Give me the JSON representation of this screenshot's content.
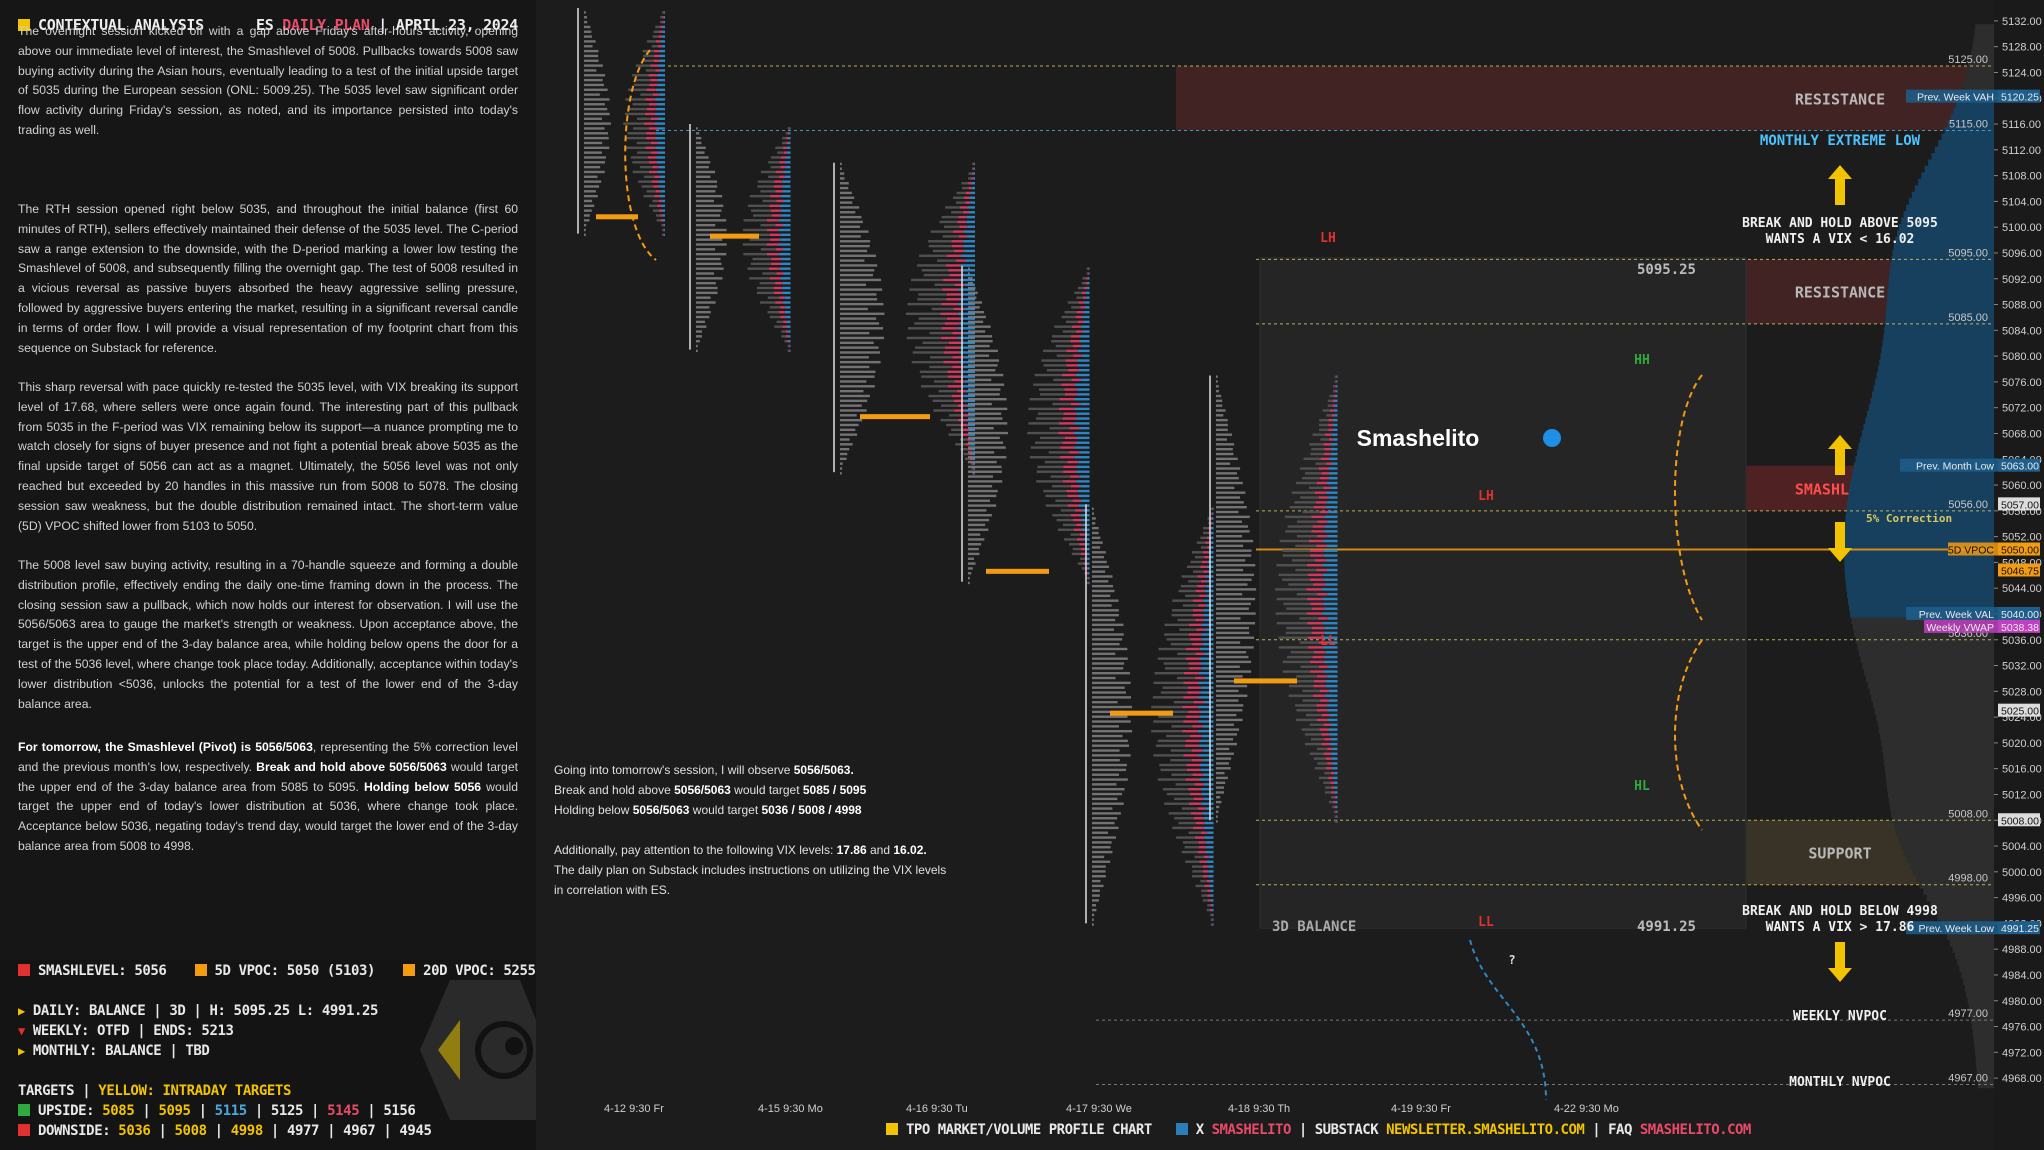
{
  "header": {
    "left": "CONTEXTUAL ANALYSIS",
    "symbol": "ES",
    "plan": "DAILY PLAN",
    "sep": "|",
    "date": "APRIL 23, 2024"
  },
  "paragraphs": [
    "The overnight session kicked off with a gap above Friday's after-hours activity, opening above our immediate level of interest, the Smashlevel of 5008. Pullbacks towards 5008 saw buying activity during the Asian hours, eventually leading to a test of the initial upside target of 5035 during the European session (ONL: 5009.25). The 5035 level saw significant order flow activity during Friday's session, as noted, and its importance persisted into today's trading as well.",
    "The RTH session opened right below 5035, and throughout the initial balance (first 60 minutes of RTH), sellers effectively maintained their defense of the 5035 level. The C-period saw a range extension to the downside, with the D-period marking a lower low testing the Smashlevel of 5008, and subsequently filling the overnight gap. The test of 5008 resulted in a vicious reversal as passive buyers absorbed the heavy aggressive selling pressure, followed by aggressive buyers entering the market, resulting in a significant reversal candle in terms of order flow. I will provide a visual representation of my footprint chart from this sequence on Substack for reference.",
    "This sharp reversal with pace quickly re-tested the 5035 level, with VIX breaking its support level of 17.68, where sellers were once again found. The interesting part of this pullback from 5035 in the F-period was VIX remaining below its support—a nuance prompting me to watch closely for signs of buyer presence and not fight a potential break above 5035 as the final upside target of 5056 can act as a magnet. Ultimately, the 5056 level was not only reached but exceeded by 20 handles in this massive run from 5008 to 5078. The closing session saw weakness, but the double distribution remained intact. The short-term value (5D) VPOC shifted lower from 5103 to 5050.",
    "The 5008 level saw buying activity, resulting in a 70-handle squeeze and forming a double distribution profile, effectively ending the daily one-time framing down in the process. The closing session saw a pullback, which now holds our interest for observation. I will use the 5056/5063 area to gauge the market's strength or weakness. Upon acceptance above, the target is the upper end of the 3-day balance area, while holding below opens the door for a test of the 5036 level, where change took place today. Additionally, acceptance within today's lower distribution <5036, unlocks the potential for a test of the lower end of the 3-day balance area."
  ],
  "tomorrow": {
    "p1": "For tomorrow, the Smashlevel (Pivot) is 5056/5063",
    "t1": ", representing the 5% correction level and the previous month's low, respectively. ",
    "p2": "Break and hold above 5056/5063",
    "t2": " would target the upper end of the 3-day balance area from 5085 to 5095. ",
    "p3": "Holding below 5056",
    "t3": " would target the upper end of today's lower distribution at 5036, where change took place. Acceptance below 5036, negating today's trend day, would target the lower end of the 3-day balance area from 5008 to 4998."
  },
  "levels_row": {
    "smash": "SMASHLEVEL: 5056",
    "vpoc5": "5D VPOC: 5050 (5103)",
    "vpoc20": "20D VPOC: 5255"
  },
  "timeframes": {
    "daily": "DAILY: BALANCE | 3D | H: 5095.25 L: 4991.25",
    "weekly": "WEEKLY: OTFD | ENDS: 5213",
    "monthly": "MONTHLY: BALANCE | TBD"
  },
  "targets": {
    "title": "TARGETS",
    "sep": "|",
    "yellow": "YELLOW: INTRADAY TARGETS",
    "upside": "UPSIDE:",
    "up": [
      "5085",
      "5095",
      "5115",
      "5125",
      "5145",
      "5156"
    ],
    "downside": "DOWNSIDE:",
    "down": [
      "5036",
      "5008",
      "4998",
      "4977",
      "4967",
      "4945"
    ]
  },
  "notes": {
    "l1a": "Going into tomorrow's session, I will observe ",
    "l1b": "5056/5063.",
    "l2a": "Break and hold above ",
    "l2b": "5056/5063",
    "l2c": " would target ",
    "l2d": "5085 / 5095",
    "l3a": "Holding below ",
    "l3b": "5056/5063",
    "l3c": " would target ",
    "l3d": "5036 / 5008 / 4998",
    "l4a": "Additionally, pay attention to the following VIX levels: ",
    "l4b": "17.86",
    "l4c": " and ",
    "l4d": "16.02.",
    "l5": "The daily plan on Substack includes instructions on utilizing the VIX levels",
    "l6": "in correlation with ES."
  },
  "footer": {
    "chart": "TPO MARKET/VOLUME PROFILE CHART",
    "x": "X",
    "handle": "SMASHELITO",
    "sep": "|",
    "substack": "SUBSTACK",
    "site": "NEWSLETTER.SMASHELITO.COM",
    "faq": "FAQ",
    "faqsite": "SMASHELITO.COM"
  },
  "chart_data": {
    "type": "tpo-profile",
    "ylim": [
      4966,
      5134
    ],
    "y_ticks": [
      5132,
      5128,
      5124,
      5120,
      5116,
      5112,
      5108,
      5104,
      5100,
      5096,
      5092,
      5088,
      5084,
      5080,
      5076,
      5072,
      5068,
      5064,
      5060,
      5056,
      5052,
      5048,
      5044,
      5040,
      5036,
      5032,
      5028,
      5024,
      5020,
      5016,
      5012,
      5008,
      5004,
      5000,
      4996,
      4992,
      4988,
      4984,
      4980,
      4976,
      4972,
      4968
    ],
    "x_labels": [
      "4-12  9:30 Fr",
      "4-15  9:30 Mo",
      "4-16  9:30 Tu",
      "4-17  9:30 We",
      "4-18  9:30 Th",
      "4-19  9:30 Fr",
      "4-22  9:30 Mo"
    ],
    "levels": [
      {
        "price": 5125,
        "label": "5125.00",
        "color": "#d8c860"
      },
      {
        "price": 5115,
        "label": "5115.00",
        "color": "#4aa8e0"
      },
      {
        "price": 5095,
        "label": "5095.00",
        "color": "#d8c860"
      },
      {
        "price": 5085,
        "label": "5085.00",
        "color": "#d8c860"
      },
      {
        "price": 5056,
        "label": "5056.00",
        "color": "#d8c860"
      },
      {
        "price": 5050,
        "label": "5D VPOC",
        "color": "#f39c12"
      },
      {
        "price": 5036,
        "label": "5036.00",
        "color": "#d8c860"
      },
      {
        "price": 5008,
        "label": "5008.00",
        "color": "#d8c860"
      },
      {
        "price": 4998,
        "label": "4998.00",
        "color": "#d8c860"
      },
      {
        "price": 4977,
        "label": "4977.00",
        "color": "#888888"
      },
      {
        "price": 4967,
        "label": "4967.00",
        "color": "#888888"
      }
    ],
    "axis_tags": [
      {
        "price": 5120.25,
        "text": "5120.25",
        "name": "Prev. Week VAH",
        "bg": "#1d5e8c"
      },
      {
        "price": 5063,
        "text": "5063.00",
        "name": "Prev. Month Low",
        "bg": "#1d5e8c"
      },
      {
        "price": 5057,
        "text": "5057.00",
        "name": "",
        "bg": "#dddddd"
      },
      {
        "price": 5050,
        "text": "5050.00",
        "name": "5D VPOC",
        "bg": "#f39c12"
      },
      {
        "price": 5046.75,
        "text": "5046.75",
        "name": "",
        "bg": "#f39c12"
      },
      {
        "price": 5040,
        "text": "5040.00",
        "name": "Prev. Week VAL",
        "bg": "#1d5e8c"
      },
      {
        "price": 5038,
        "text": "5038.38",
        "name": "Weekly VWAP",
        "bg": "#c040c0"
      },
      {
        "price": 5025,
        "text": "5025.00",
        "name": "",
        "bg": "#dddddd"
      },
      {
        "price": 5008,
        "text": "5008.00",
        "name": "",
        "bg": "#dddddd"
      },
      {
        "price": 4991.25,
        "text": "4991.25",
        "name": "Prev. Week Low",
        "bg": "#1d5e8c"
      }
    ],
    "zones": [
      {
        "from": 5115,
        "to": 5125,
        "label": "RESISTANCE"
      },
      {
        "from": 5085,
        "to": 5095,
        "label": "RESISTANCE"
      },
      {
        "from": 5056,
        "to": 5063,
        "label": "SMASHLEVEL"
      },
      {
        "from": 4998,
        "to": 5008,
        "label": "SUPPORT"
      }
    ],
    "annotations": {
      "mel": "MONTHLY EXTREME LOW",
      "bh1": "BREAK AND HOLD ABOVE 5095",
      "bh1b": "WANTS A VIX < 16.02",
      "bh2": "BREAK AND HOLD BELOW 4998",
      "bh2b": "WANTS A VIX > 17.86",
      "wnv": "WEEKLY NVPOC",
      "mnv": "MONTHLY NVPOC",
      "corr": "5% Correction",
      "bal": "3D BALANCE",
      "bhi": "5095.25",
      "blo": "4991.25",
      "brand": "Smashelito",
      "lh": "LH",
      "ll": "LL",
      "hh": "HH",
      "hl": "HL",
      "q": "?"
    }
  }
}
